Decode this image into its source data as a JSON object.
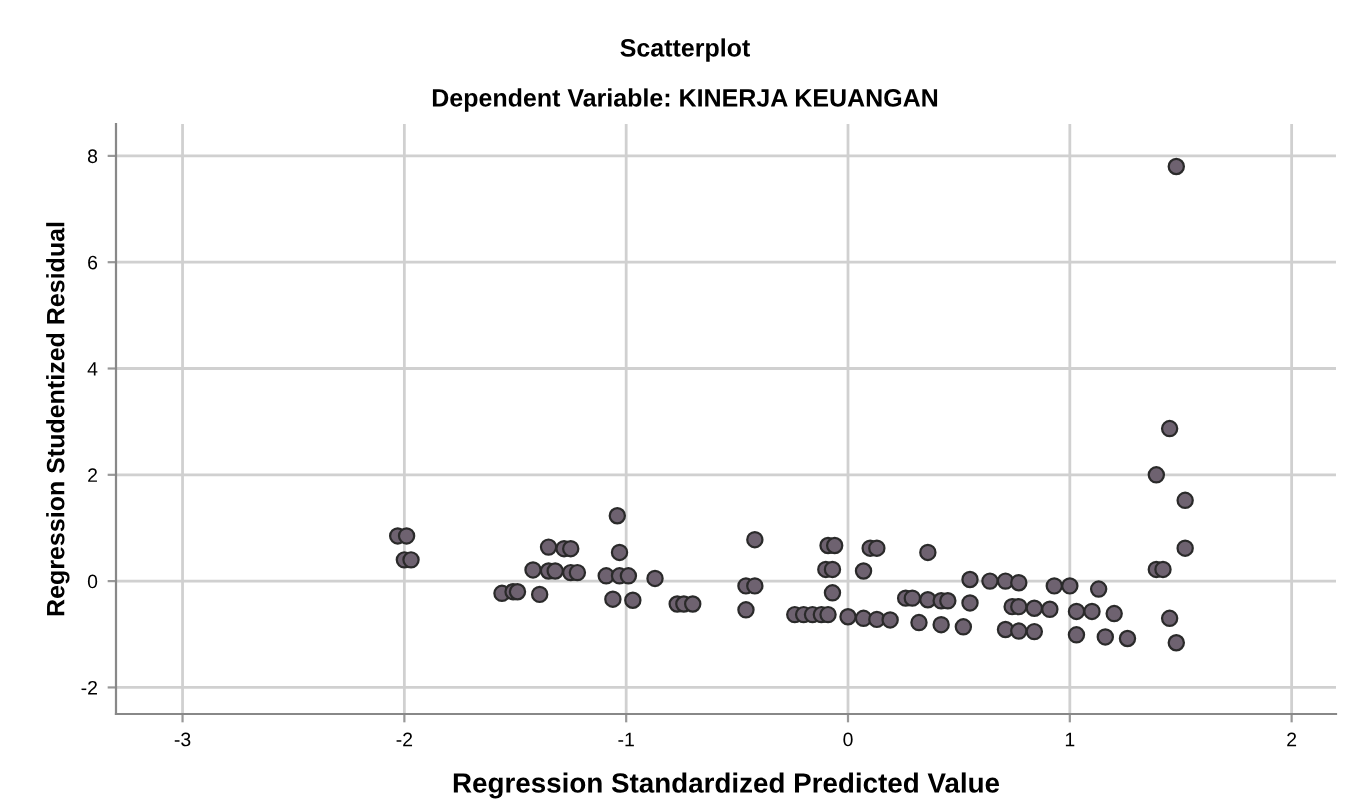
{
  "chart_data": {
    "type": "scatter",
    "title": "Scatterplot",
    "subtitle": "Dependent Variable: KINERJA KEUANGAN",
    "xlabel": "Regression Standardized Predicted Value",
    "ylabel": "Regression Studentized Residual",
    "xlim": [
      -3.3,
      2.2
    ],
    "ylim": [
      -2.5,
      8.6
    ],
    "xticks": [
      -3,
      -2,
      -1,
      0,
      1,
      2
    ],
    "yticks": [
      -2,
      0,
      2,
      4,
      6,
      8
    ],
    "grid": true,
    "marker": "circle",
    "series": [
      {
        "color": "#6e6270",
        "x": [
          -2.03,
          -1.99,
          -2.0,
          -1.97,
          -1.56,
          -1.51,
          -1.49,
          -1.42,
          -1.39,
          -1.35,
          -1.28,
          -1.25,
          -1.35,
          -1.32,
          -1.25,
          -1.22,
          -1.09,
          -1.06,
          -1.04,
          -1.03,
          -1.03,
          -0.99,
          -0.97,
          -0.87,
          -0.77,
          -0.74,
          -0.7,
          -0.42,
          -0.46,
          -0.42,
          -0.46,
          -0.24,
          -0.2,
          -0.16,
          -0.12,
          -0.09,
          -0.09,
          -0.06,
          -0.1,
          -0.07,
          -0.07,
          0.0,
          0.07,
          0.13,
          0.19,
          0.07,
          0.1,
          0.13,
          0.26,
          0.29,
          0.32,
          0.36,
          0.36,
          0.42,
          0.45,
          0.42,
          0.52,
          0.55,
          0.55,
          0.64,
          0.71,
          0.71,
          0.74,
          0.77,
          0.77,
          0.77,
          0.84,
          0.84,
          0.91,
          0.93,
          1.0,
          1.03,
          1.03,
          1.1,
          1.13,
          1.16,
          1.2,
          1.26,
          1.39,
          1.39,
          1.42,
          1.45,
          1.45,
          1.48,
          1.48,
          1.52,
          1.52
        ],
        "values": [
          0.85,
          0.85,
          0.4,
          0.4,
          -0.23,
          -0.2,
          -0.2,
          0.21,
          -0.25,
          0.64,
          0.61,
          0.61,
          0.19,
          0.19,
          0.16,
          0.16,
          0.1,
          -0.34,
          1.23,
          0.54,
          0.1,
          0.1,
          -0.36,
          0.05,
          -0.43,
          -0.43,
          -0.43,
          0.78,
          -0.09,
          -0.09,
          -0.54,
          -0.63,
          -0.63,
          -0.63,
          -0.63,
          -0.63,
          0.67,
          0.67,
          0.22,
          0.22,
          -0.22,
          -0.67,
          -0.7,
          -0.72,
          -0.73,
          0.19,
          0.62,
          0.62,
          -0.32,
          -0.32,
          -0.78,
          0.54,
          -0.35,
          -0.37,
          -0.37,
          -0.82,
          -0.86,
          0.03,
          -0.41,
          0.0,
          0.0,
          -0.91,
          -0.48,
          -0.48,
          -0.03,
          -0.94,
          -0.51,
          -0.95,
          -0.53,
          -0.09,
          -0.09,
          -0.57,
          -1.01,
          -0.57,
          -0.15,
          -1.05,
          -0.61,
          -1.08,
          2.0,
          0.22,
          0.22,
          2.87,
          -0.7,
          7.8,
          -1.16,
          1.52,
          0.62
        ]
      }
    ]
  }
}
